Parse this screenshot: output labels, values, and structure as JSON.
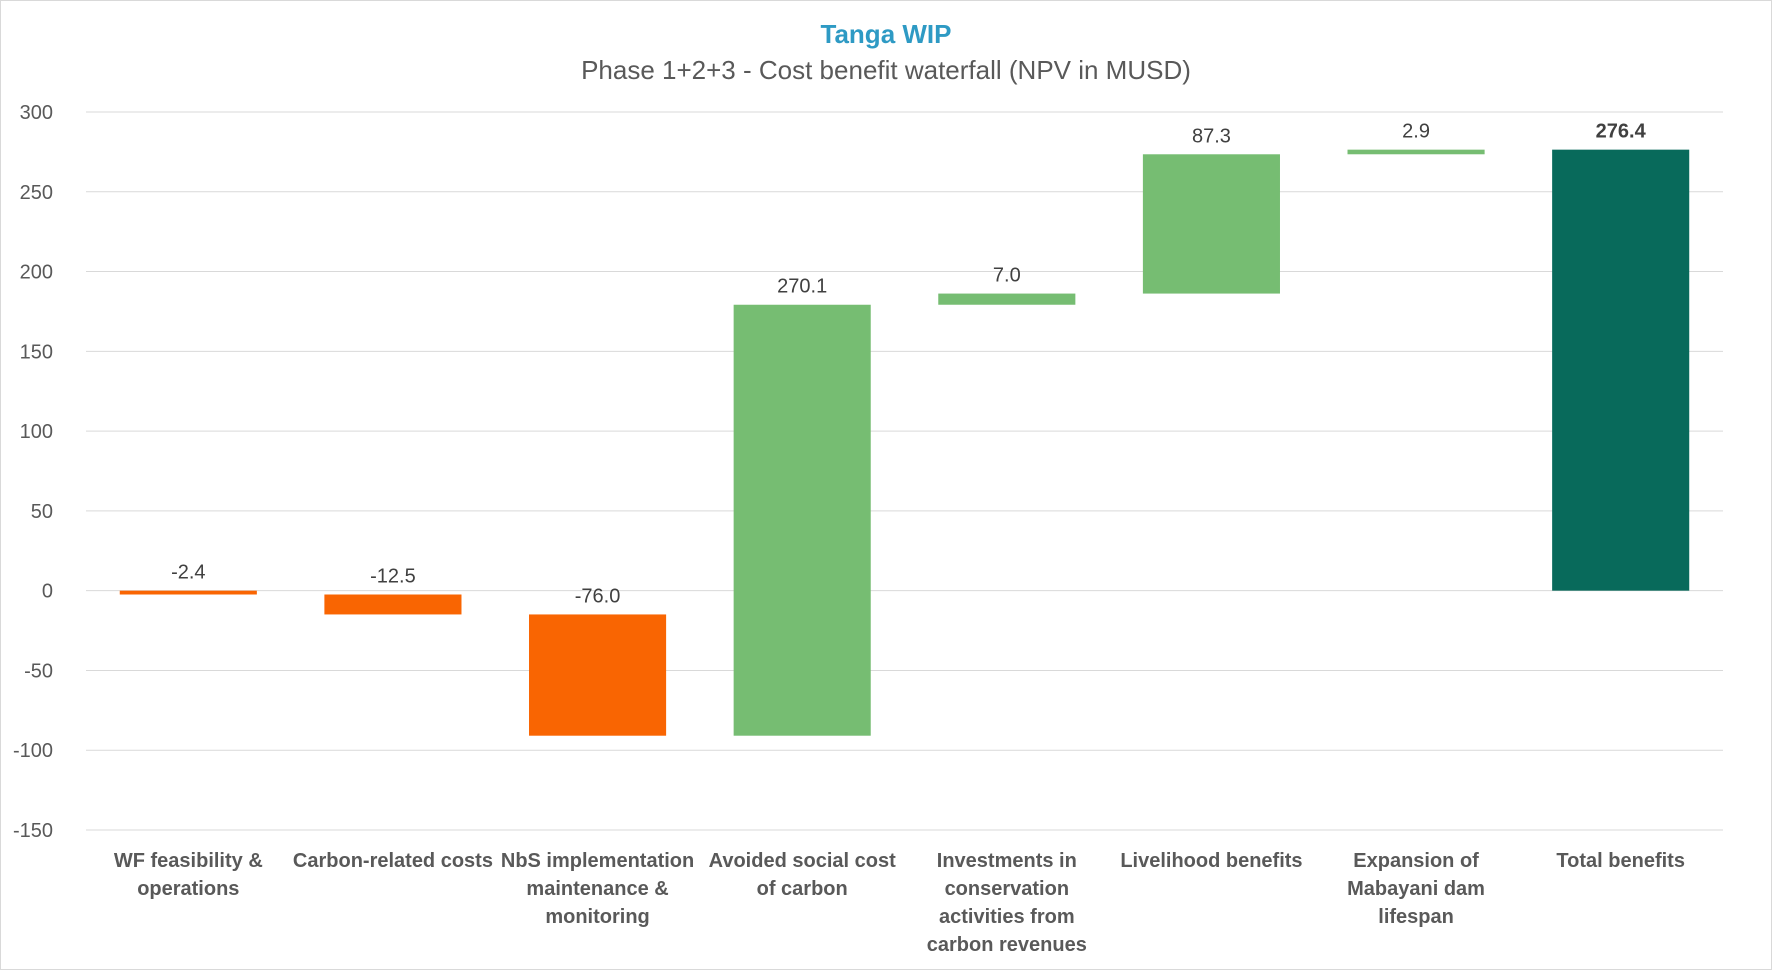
{
  "chart_data": {
    "type": "bar",
    "subtype": "waterfall",
    "title": "Tanga WIP",
    "subtitle": "Phase 1+2+3 - Cost benefit waterfall (NPV in MUSD)",
    "ylim": [
      -150,
      300
    ],
    "yticks": [
      "300",
      "250",
      "200",
      "150",
      "100",
      "50",
      "0",
      "-50",
      "-100",
      "-150"
    ],
    "grid": true,
    "colors": {
      "title": "#2E9AC4",
      "cost": "#F96502",
      "benefit": "#76BD72",
      "total": "#086A5B",
      "grid": "#D9D9D9"
    },
    "categories": [
      [
        "WF feasibility &",
        "operations"
      ],
      [
        "Carbon-related costs"
      ],
      [
        "NbS implementation",
        "maintenance &",
        "monitoring"
      ],
      [
        "Avoided social cost",
        "of carbon"
      ],
      [
        "Investments in",
        "conservation",
        "activities from",
        "carbon revenues"
      ],
      [
        "Livelihood benefits"
      ],
      [
        "Expansion of",
        "Mabayani dam",
        "lifespan"
      ],
      [
        "Total benefits"
      ]
    ],
    "bars": [
      {
        "label": "-2.4",
        "kind": "cost",
        "start": 0,
        "end": -2.4
      },
      {
        "label": "-12.5",
        "kind": "cost",
        "start": -2.4,
        "end": -14.9
      },
      {
        "label": "-76.0",
        "kind": "cost",
        "start": -14.9,
        "end": -90.9
      },
      {
        "label": "270.1",
        "kind": "benefit",
        "start": -90.9,
        "end": 179.2
      },
      {
        "label": "7.0",
        "kind": "benefit",
        "start": 179.2,
        "end": 186.2
      },
      {
        "label": "87.3",
        "kind": "benefit",
        "start": 186.2,
        "end": 273.5
      },
      {
        "label": "2.9",
        "kind": "benefit",
        "start": 273.5,
        "end": 276.4
      },
      {
        "label": "276.4",
        "kind": "total",
        "start": 0,
        "end": 276.4
      }
    ]
  }
}
